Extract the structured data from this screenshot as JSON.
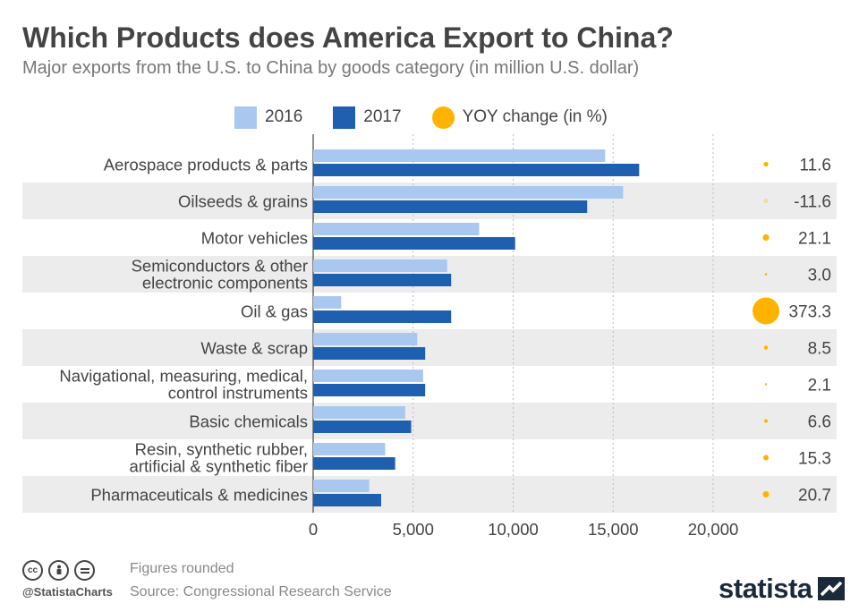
{
  "title": "Which Products does America Export to China?",
  "subtitle": "Major exports from the U.S. to China by goods category (in million U.S. dollar)",
  "legend": {
    "s2016": "2016",
    "s2017": "2017",
    "yoy": "YOY change (in %)"
  },
  "colors": {
    "s2016": "#a8c8f0",
    "s2017": "#1f5fb0",
    "yoy": "#ffb300",
    "band": "#ececec"
  },
  "chart_data": {
    "type": "bar",
    "orientation": "horizontal",
    "categories": [
      [
        "Aerospace products & parts"
      ],
      [
        "Oilseeds & grains"
      ],
      [
        "Motor vehicles"
      ],
      [
        "Semiconductors & other",
        "electronic components"
      ],
      [
        "Oil & gas"
      ],
      [
        "Waste & scrap"
      ],
      [
        "Navigational, measuring, medical,",
        "control instruments"
      ],
      [
        "Basic chemicals"
      ],
      [
        "Resin, synthetic rubber,",
        "artificial & synthetic fiber"
      ],
      [
        "Pharmaceuticals & medicines"
      ]
    ],
    "series": [
      {
        "name": "2016",
        "values": [
          14600,
          15500,
          8300,
          6700,
          1400,
          5200,
          5500,
          4600,
          3600,
          2800
        ]
      },
      {
        "name": "2017",
        "values": [
          16300,
          13700,
          10100,
          6900,
          6900,
          5600,
          5600,
          4900,
          4100,
          3400
        ]
      }
    ],
    "yoy_change": {
      "name": "YOY change (in %)",
      "values": [
        11.6,
        -11.6,
        21.1,
        3.0,
        373.3,
        8.5,
        2.1,
        6.6,
        15.3,
        20.7
      ],
      "labels": [
        "11.6",
        "-11.6",
        "21.1",
        "3.0",
        "373.3",
        "8.5",
        "2.1",
        "6.6",
        "15.3",
        "20.7"
      ]
    },
    "xlim": [
      0,
      20000
    ],
    "xticks": [
      0,
      5000,
      10000,
      15000,
      20000
    ],
    "xtick_labels": [
      "0",
      "5,000",
      "10,000",
      "15,000",
      "20,000"
    ],
    "grid": true,
    "legend_position": "top"
  },
  "footer": {
    "handle": "@StatistaCharts",
    "note": "Figures rounded",
    "source": "Source: Congressional Research Service",
    "logo": "statista"
  }
}
